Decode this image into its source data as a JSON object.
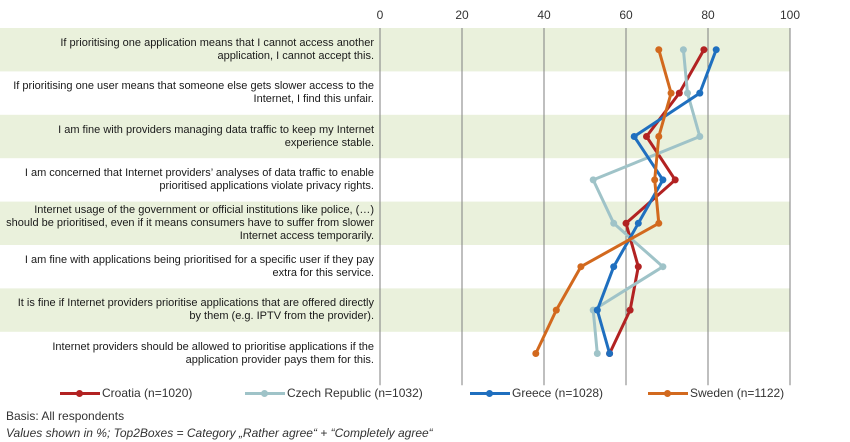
{
  "chart_data": {
    "type": "line",
    "orientation": "horizontal",
    "categories": [
      "If prioritising one application means that I cannot access another application, I cannot accept this.",
      "If prioritising one user means that someone else gets slower access to the Internet, I find this unfair.",
      "I am fine with providers managing data traffic to keep my Internet experience stable.",
      "I am concerned that Internet providers’ analyses of data traffic to enable prioritised applications violate privacy rights.",
      "Internet usage of the government or official institutions like police, (…) should be prioritised, even if it means consumers have to suffer from slower Internet access temporarily.",
      "I am fine with applications being prioritised for a specific user if they pay extra for this service.",
      "It is fine if Internet providers prioritise applications that are offered directly by them (e.g. IPTV from the provider).",
      "Internet providers should be allowed to prioritise applications if the application provider pays them for this."
    ],
    "xlim": [
      0,
      100
    ],
    "xticks": [
      "0",
      "20",
      "40",
      "60",
      "80",
      "100"
    ],
    "grid": true,
    "legend_position": "bottom",
    "series": [
      {
        "name": "Croatia (n=1020)",
        "color": "#b22222",
        "values": [
          79,
          73,
          65,
          72,
          60,
          63,
          61,
          56
        ]
      },
      {
        "name": "Czech Republic (n=1032)",
        "color": "#9fc3c8",
        "values": [
          74,
          75,
          78,
          52,
          57,
          69,
          52,
          53
        ]
      },
      {
        "name": "Greece (n=1028)",
        "color": "#1f6fbf",
        "values": [
          82,
          78,
          62,
          69,
          63,
          57,
          53,
          56
        ]
      },
      {
        "name": "Sweden (n=1122)",
        "color": "#d2691e",
        "values": [
          68,
          71,
          68,
          67,
          68,
          49,
          43,
          38
        ]
      }
    ]
  },
  "footnotes": {
    "basis": "Basis: All respondents",
    "values_note": "Values shown in %; Top2Boxes = Category „Rather agree“ + “Completely agree“"
  }
}
